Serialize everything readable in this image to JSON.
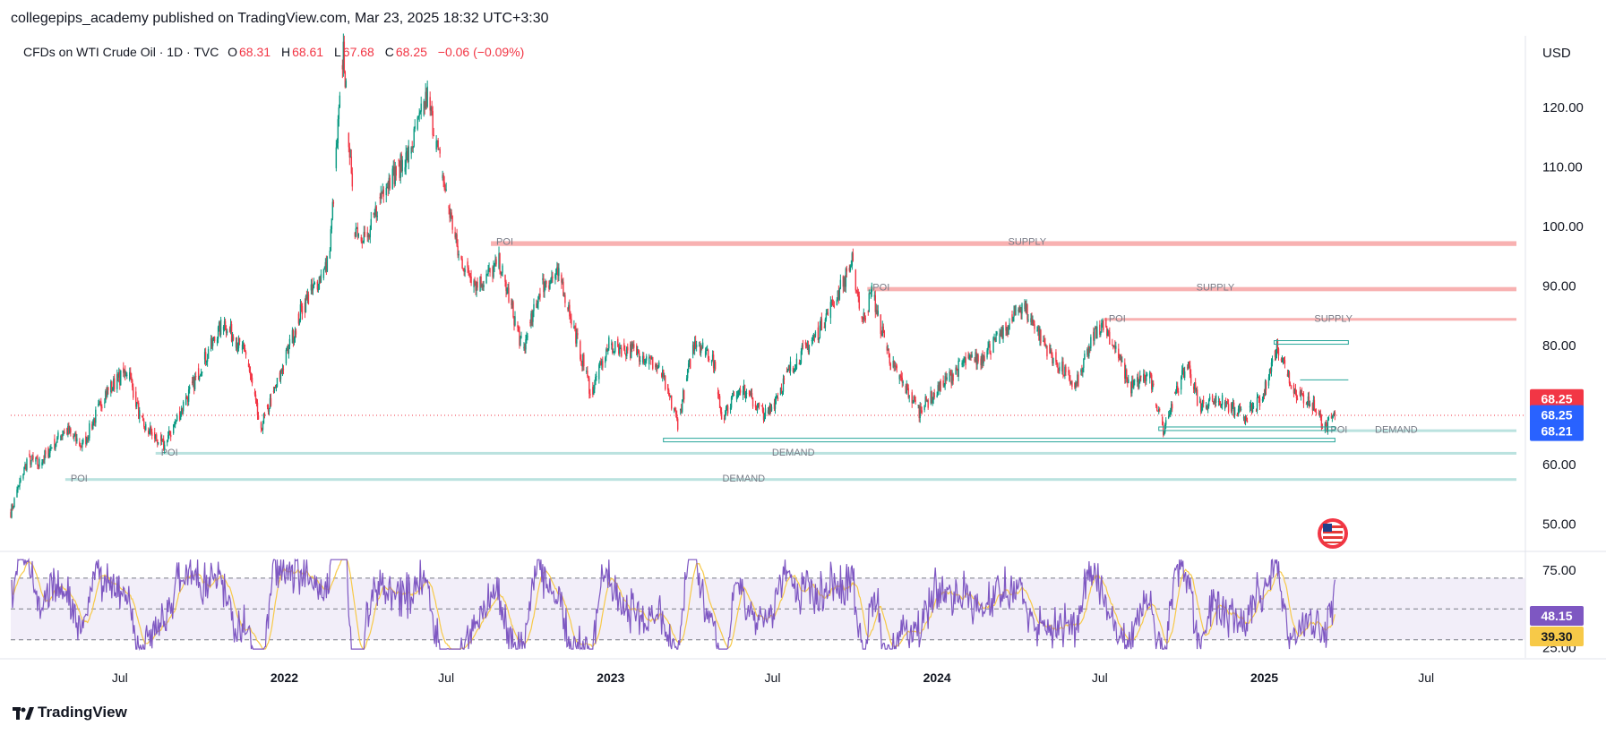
{
  "publisher_line": "collegepips_academy published on TradingView.com, Mar 23, 2025 18:32 UTC+3:30",
  "legend": {
    "symbol": "CFDs on WTI Crude Oil · 1D · TVC",
    "open_label": "O",
    "open": "68.31",
    "high_label": "H",
    "high": "68.61",
    "low_label": "L",
    "low": "67.68",
    "close_label": "C",
    "close": "68.25",
    "change": "−0.06 (−0.09%)"
  },
  "currency": "USD",
  "footer_brand": "TradingView",
  "colors": {
    "up": "#089981",
    "down": "#f23645",
    "rsi": "#7e57c2",
    "rsi_ma": "#f7c948",
    "supply": "#f7a9a9",
    "demand": "#26a69a"
  },
  "chart_data": {
    "type": "candlestick",
    "title": "CFDs on WTI Crude Oil · 1D · TVC",
    "y_axis": {
      "unit": "USD",
      "ticks": [
        50,
        60,
        70,
        80,
        90,
        100,
        110,
        120
      ],
      "tick_labels": [
        "50.00",
        "60.00",
        "",
        "80.00",
        "90.00",
        "100.00",
        "110.00",
        "120.00"
      ],
      "range": [
        46,
        132
      ]
    },
    "x_axis": {
      "range": [
        "2021-03-01",
        "2025-10-20"
      ],
      "ticks": [
        {
          "date": "2021-07-01",
          "label": "Jul",
          "bold": false
        },
        {
          "date": "2022-01-01",
          "label": "2022",
          "bold": true
        },
        {
          "date": "2022-07-01",
          "label": "Jul",
          "bold": false
        },
        {
          "date": "2023-01-01",
          "label": "2023",
          "bold": true
        },
        {
          "date": "2023-07-01",
          "label": "Jul",
          "bold": false
        },
        {
          "date": "2024-01-01",
          "label": "2024",
          "bold": true
        },
        {
          "date": "2024-07-01",
          "label": "Jul",
          "bold": false
        },
        {
          "date": "2025-01-01",
          "label": "2025",
          "bold": true
        },
        {
          "date": "2025-07-01",
          "label": "Jul",
          "bold": false
        }
      ]
    },
    "price_path": [
      [
        "2021-03-01",
        52
      ],
      [
        "2021-03-20",
        61
      ],
      [
        "2021-04-01",
        60
      ],
      [
        "2021-05-01",
        66
      ],
      [
        "2021-05-20",
        63
      ],
      [
        "2021-06-15",
        72
      ],
      [
        "2021-07-10",
        76
      ],
      [
        "2021-07-25",
        67
      ],
      [
        "2021-08-20",
        63
      ],
      [
        "2021-09-10",
        70
      ],
      [
        "2021-10-05",
        78
      ],
      [
        "2021-10-25",
        84
      ],
      [
        "2021-11-20",
        78
      ],
      [
        "2021-12-05",
        66
      ],
      [
        "2021-12-25",
        74
      ],
      [
        "2022-01-20",
        86
      ],
      [
        "2022-02-20",
        94
      ],
      [
        "2022-03-08",
        130
      ],
      [
        "2022-03-20",
        100
      ],
      [
        "2022-04-05",
        98
      ],
      [
        "2022-04-20",
        106
      ],
      [
        "2022-05-20",
        112
      ],
      [
        "2022-06-10",
        122
      ],
      [
        "2022-06-30",
        106
      ],
      [
        "2022-07-15",
        95
      ],
      [
        "2022-08-05",
        90
      ],
      [
        "2022-08-30",
        94
      ],
      [
        "2022-09-25",
        79
      ],
      [
        "2022-10-15",
        90
      ],
      [
        "2022-11-05",
        92
      ],
      [
        "2022-12-10",
        72
      ],
      [
        "2022-12-30",
        80
      ],
      [
        "2023-01-30",
        79
      ],
      [
        "2023-02-25",
        76
      ],
      [
        "2023-03-17",
        67
      ],
      [
        "2023-04-05",
        81
      ],
      [
        "2023-04-25",
        78
      ],
      [
        "2023-05-05",
        68
      ],
      [
        "2023-05-25",
        73
      ],
      [
        "2023-06-25",
        68
      ],
      [
        "2023-07-20",
        76
      ],
      [
        "2023-08-20",
        82
      ],
      [
        "2023-09-10",
        88
      ],
      [
        "2023-09-28",
        94
      ],
      [
        "2023-10-10",
        84
      ],
      [
        "2023-10-20",
        89
      ],
      [
        "2023-11-10",
        77
      ],
      [
        "2023-12-12",
        69
      ],
      [
        "2023-12-30",
        72
      ],
      [
        "2024-01-30",
        77
      ],
      [
        "2024-02-20",
        78
      ],
      [
        "2024-03-15",
        82
      ],
      [
        "2024-04-05",
        87
      ],
      [
        "2024-05-05",
        79
      ],
      [
        "2024-06-04",
        73
      ],
      [
        "2024-06-25",
        82
      ],
      [
        "2024-07-05",
        84
      ],
      [
        "2024-08-05",
        73
      ],
      [
        "2024-08-25",
        75
      ],
      [
        "2024-09-10",
        66
      ],
      [
        "2024-10-07",
        77
      ],
      [
        "2024-10-20",
        70
      ],
      [
        "2024-11-10",
        71
      ],
      [
        "2024-12-10",
        68
      ],
      [
        "2024-12-30",
        71
      ],
      [
        "2025-01-15",
        80
      ],
      [
        "2025-02-05",
        72
      ],
      [
        "2025-02-25",
        70
      ],
      [
        "2025-03-10",
        66
      ],
      [
        "2025-03-21",
        68.25
      ]
    ],
    "last_close": 68.25,
    "price_labels": [
      {
        "text": "68.25",
        "bg": "#f23645",
        "price": 71
      },
      {
        "text": "68.25",
        "bg": "#2962ff",
        "price": 68.3
      },
      {
        "text": "68.21",
        "bg": "#2962ff",
        "price": 65.6
      }
    ],
    "zones": [
      {
        "kind": "supply",
        "label": "SUPPLY",
        "poi": "POI",
        "start": "2022-08-20",
        "price_top": 97.5,
        "price_bottom": 96.7
      },
      {
        "kind": "supply",
        "label": "SUPPLY",
        "poi": "POI",
        "start": "2023-10-15",
        "price_top": 89.8,
        "price_bottom": 89.1
      },
      {
        "kind": "supply",
        "label": "SUPPLY",
        "poi": "POI",
        "start": "2024-07-05",
        "price_top": 84.6,
        "price_bottom": 84.2
      },
      {
        "kind": "demand",
        "label": "DEMAND",
        "poi": "POI",
        "start": "2021-08-10",
        "price_top": 62.1,
        "price_bottom": 61.8
      },
      {
        "kind": "demand",
        "label": "DEMAND",
        "poi": "POI",
        "start": "2021-05-01",
        "price_top": 57.7,
        "price_bottom": 57.3
      },
      {
        "kind": "demand",
        "label": "DEMAND",
        "poi": "POI",
        "start": "2025-03-10",
        "price_top": 65.9,
        "price_bottom": 65.5
      }
    ],
    "rsi": {
      "y_axis": {
        "ticks": [
          25,
          75
        ],
        "tick_labels": [
          "25.00",
          "75.00"
        ],
        "range": [
          20,
          85
        ]
      },
      "band": [
        30,
        70
      ],
      "last_value": "48.15",
      "ma_value": "39.30"
    }
  }
}
